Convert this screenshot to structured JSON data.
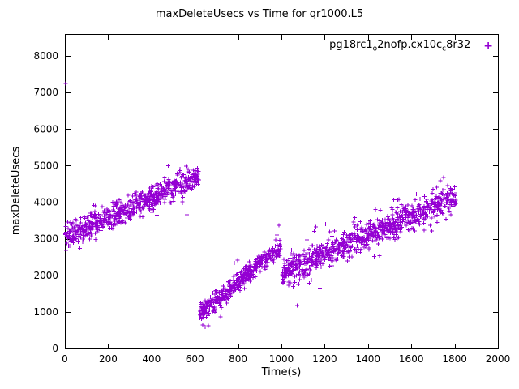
{
  "chart_data": {
    "type": "scatter",
    "title": "maxDeleteUsecs vs Time for qr1000.L5",
    "xlabel": "Time(s)",
    "ylabel": "maxDeleteUsecs",
    "xlim": [
      0,
      2000
    ],
    "ylim": [
      0,
      8600
    ],
    "xticks": [
      0,
      200,
      400,
      600,
      800,
      1000,
      1200,
      1400,
      1600,
      1800,
      2000
    ],
    "yticks": [
      0,
      1000,
      2000,
      3000,
      4000,
      5000,
      6000,
      7000,
      8000
    ],
    "grid": false,
    "background": "#ffffff",
    "axis_color": "#000000",
    "marker": {
      "shape": "plus",
      "color": "#9400d3",
      "half_size": 2.5,
      "glyph": "+"
    },
    "legend": {
      "position": "top-right",
      "text_plain": "pg18rc1_o2nofp.cx10c_c8r32",
      "parts": [
        {
          "t": "pg18rc1",
          "sub": false
        },
        {
          "t": "o",
          "sub": true
        },
        {
          "t": "2nofp.cx10c",
          "sub": false
        },
        {
          "t": "c",
          "sub": true
        },
        {
          "t": "8r32",
          "sub": false
        }
      ]
    },
    "series": [
      {
        "name": "pg18rc1_o2nofp.cx10c_c8r32",
        "color": "#9400d3",
        "segments": [
          {
            "x_start": 0,
            "x_end": 620,
            "y_start": 3050,
            "y_end": 4700,
            "noise": 165,
            "count": 650
          },
          {
            "x_start": 620,
            "x_end": 998,
            "y_start": 950,
            "y_end": 2780,
            "noise": 135,
            "count": 430
          },
          {
            "x_start": 1002,
            "x_end": 1810,
            "y_start": 2080,
            "y_end": 4150,
            "noise": 185,
            "count": 830
          }
        ],
        "outliers": [
          [
            3,
            7250
          ],
          [
            636,
            640
          ],
          [
            648,
            590
          ],
          [
            662,
            620
          ],
          [
            1055,
            1700
          ],
          [
            1080,
            1760
          ],
          [
            1160,
            3320
          ],
          [
            1205,
            3400
          ]
        ]
      }
    ]
  },
  "layout_note": "single scatter plot, gnuplot style, purple plus markers"
}
